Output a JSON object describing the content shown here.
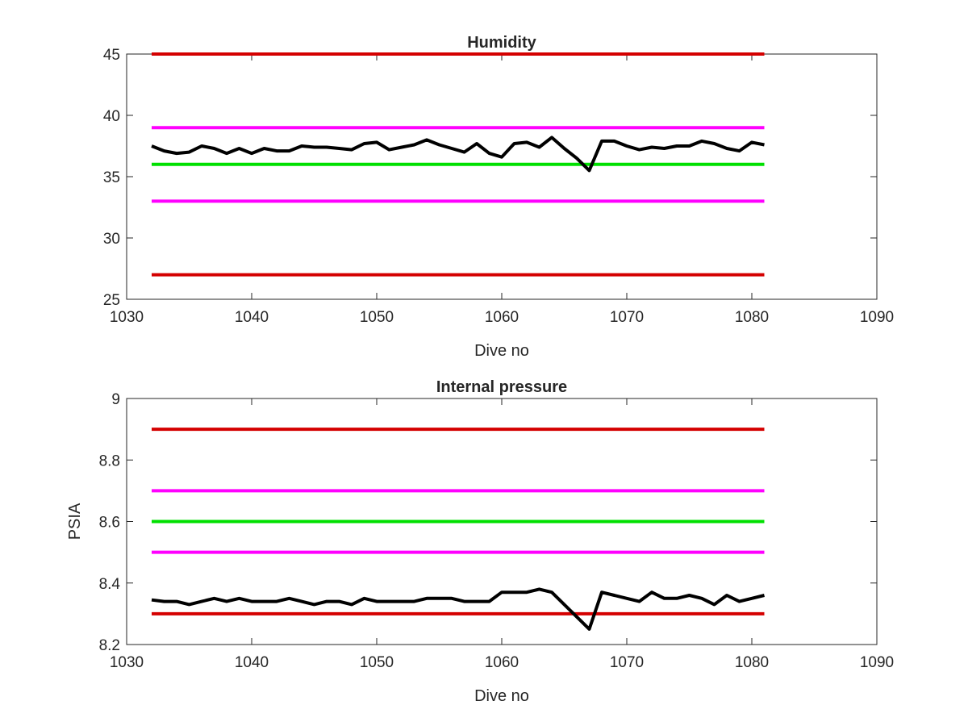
{
  "chart_data": [
    {
      "type": "line",
      "title": "Humidity",
      "xlabel": "Dive no",
      "ylabel": "",
      "xlim": [
        1030,
        1090
      ],
      "ylim": [
        25,
        45
      ],
      "xticks": [
        "1030",
        "1040",
        "1050",
        "1060",
        "1070",
        "1080",
        "1090"
      ],
      "yticks": [
        "25",
        "30",
        "35",
        "40",
        "45"
      ],
      "grid": false,
      "limit_lines": [
        {
          "color": "#d40000",
          "y": 45,
          "x": [
            1032,
            1081
          ]
        },
        {
          "color": "#ff00ff",
          "y": 39,
          "x": [
            1032,
            1081
          ]
        },
        {
          "color": "#00e000",
          "y": 36,
          "x": [
            1032,
            1081
          ]
        },
        {
          "color": "#ff00ff",
          "y": 33,
          "x": [
            1032,
            1081
          ]
        },
        {
          "color": "#d40000",
          "y": 27,
          "x": [
            1032,
            1081
          ]
        }
      ],
      "series": [
        {
          "color": "#000000",
          "x": [
            1032,
            1033,
            1034,
            1035,
            1036,
            1037,
            1038,
            1039,
            1040,
            1041,
            1042,
            1043,
            1044,
            1045,
            1046,
            1047,
            1048,
            1049,
            1050,
            1051,
            1052,
            1053,
            1054,
            1055,
            1056,
            1057,
            1058,
            1059,
            1060,
            1061,
            1062,
            1063,
            1064,
            1065,
            1066,
            1067,
            1068,
            1069,
            1070,
            1071,
            1072,
            1073,
            1074,
            1075,
            1076,
            1077,
            1078,
            1079,
            1080,
            1081
          ],
          "y": [
            37.5,
            37.1,
            36.9,
            37.0,
            37.5,
            37.3,
            36.9,
            37.3,
            36.9,
            37.3,
            37.1,
            37.1,
            37.5,
            37.4,
            37.4,
            37.3,
            37.2,
            37.7,
            37.8,
            37.2,
            37.4,
            37.6,
            38.0,
            37.6,
            37.3,
            37.0,
            37.7,
            36.9,
            36.6,
            37.7,
            37.8,
            37.4,
            38.2,
            37.3,
            36.5,
            35.5,
            37.9,
            37.9,
            37.5,
            37.2,
            37.4,
            37.3,
            37.5,
            37.5,
            37.9,
            37.7,
            37.3,
            37.1,
            37.8,
            37.6
          ]
        }
      ]
    },
    {
      "type": "line",
      "title": "Internal pressure",
      "xlabel": "Dive no",
      "ylabel": "PSIA",
      "xlim": [
        1030,
        1090
      ],
      "ylim": [
        8.2,
        9.0
      ],
      "xticks": [
        "1030",
        "1040",
        "1050",
        "1060",
        "1070",
        "1080",
        "1090"
      ],
      "yticks": [
        "8.2",
        "8.4",
        "8.6",
        "8.8",
        "9"
      ],
      "grid": false,
      "limit_lines": [
        {
          "color": "#d40000",
          "y": 8.9,
          "x": [
            1032,
            1081
          ]
        },
        {
          "color": "#ff00ff",
          "y": 8.7,
          "x": [
            1032,
            1081
          ]
        },
        {
          "color": "#00e000",
          "y": 8.6,
          "x": [
            1032,
            1081
          ]
        },
        {
          "color": "#ff00ff",
          "y": 8.5,
          "x": [
            1032,
            1081
          ]
        },
        {
          "color": "#d40000",
          "y": 8.3,
          "x": [
            1032,
            1081
          ]
        }
      ],
      "series": [
        {
          "color": "#000000",
          "x": [
            1032,
            1033,
            1034,
            1035,
            1036,
            1037,
            1038,
            1039,
            1040,
            1041,
            1042,
            1043,
            1044,
            1045,
            1046,
            1047,
            1048,
            1049,
            1050,
            1051,
            1052,
            1053,
            1054,
            1055,
            1056,
            1057,
            1058,
            1059,
            1060,
            1061,
            1062,
            1063,
            1064,
            1065,
            1066,
            1067,
            1068,
            1069,
            1070,
            1071,
            1072,
            1073,
            1074,
            1075,
            1076,
            1077,
            1078,
            1079,
            1080,
            1081
          ],
          "y": [
            8.345,
            8.34,
            8.34,
            8.33,
            8.34,
            8.35,
            8.34,
            8.35,
            8.34,
            8.34,
            8.34,
            8.35,
            8.34,
            8.33,
            8.34,
            8.34,
            8.33,
            8.35,
            8.34,
            8.34,
            8.34,
            8.34,
            8.35,
            8.35,
            8.35,
            8.34,
            8.34,
            8.34,
            8.37,
            8.37,
            8.37,
            8.38,
            8.37,
            8.33,
            8.29,
            8.25,
            8.37,
            8.36,
            8.35,
            8.34,
            8.37,
            8.35,
            8.35,
            8.36,
            8.35,
            8.33,
            8.36,
            8.34,
            8.35,
            8.36
          ]
        }
      ]
    }
  ]
}
